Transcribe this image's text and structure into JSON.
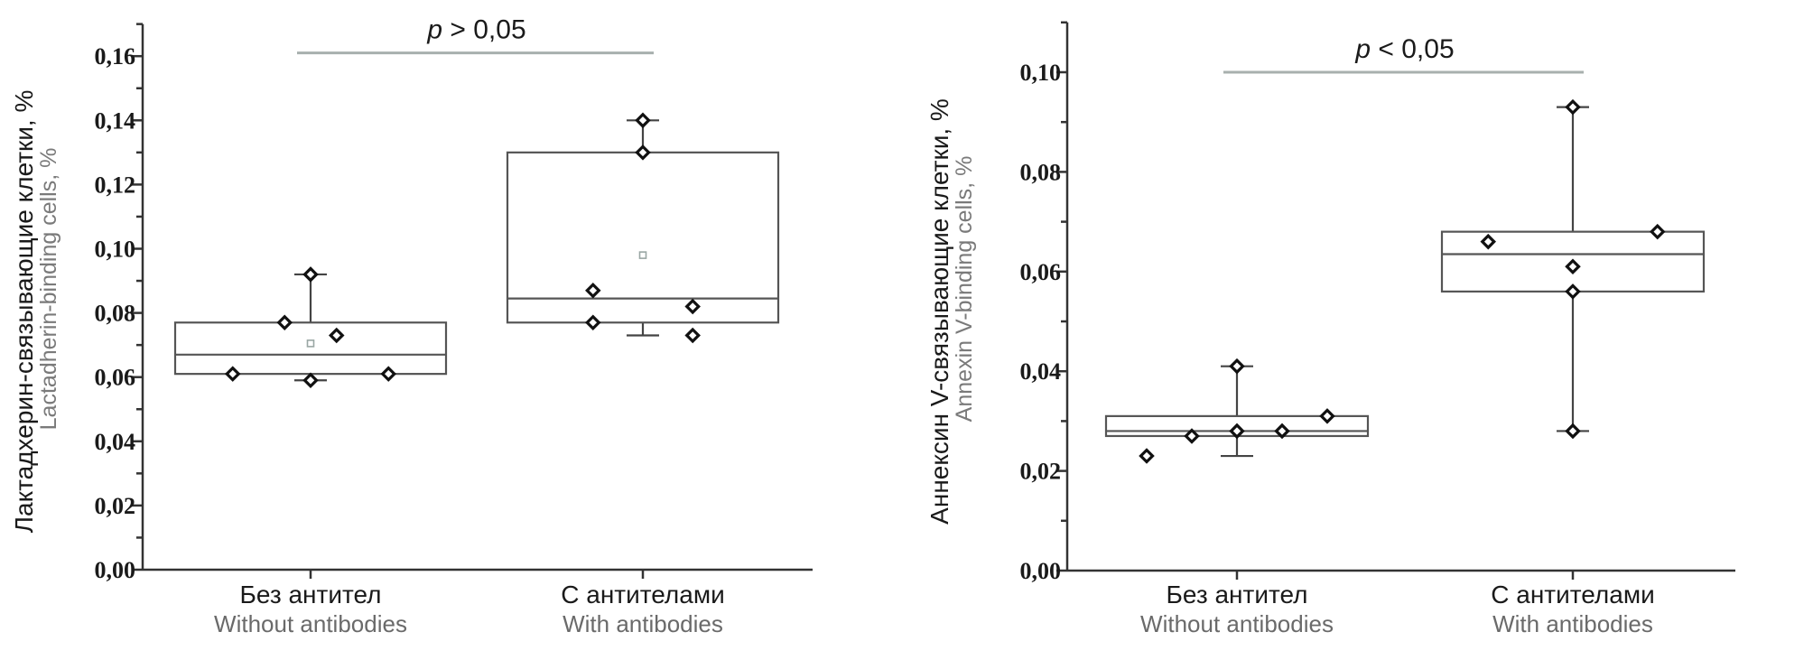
{
  "chart_data": [
    {
      "type": "box",
      "ylabel": "Лактадхерин-связывающие клетки, %",
      "ylabel_en": "Lactadherin-binding cells, %",
      "ylim": [
        0,
        0.17
      ],
      "yticks": [
        0.0,
        0.02,
        0.04,
        0.06,
        0.08,
        0.1,
        0.12,
        0.14,
        0.16
      ],
      "ytick_labels": [
        "0,00",
        "0,02",
        "0,04",
        "0,06",
        "0,08",
        "0,10",
        "0,12",
        "0,14",
        "0,16"
      ],
      "minor_step": 0.01,
      "significance": {
        "p": "p",
        "text": " > 0,05",
        "from": 0,
        "to": 1,
        "y": 0.161
      },
      "categories": [
        {
          "label": "Без антител",
          "label_en": "Without antibodies",
          "q1": 0.061,
          "median": 0.067,
          "q3": 0.077,
          "whisker_low": 0.059,
          "whisker_high": 0.092,
          "mean": 0.0705,
          "points": [
            {
              "dx": -0.75,
              "y": 0.061
            },
            {
              "dx": -0.25,
              "y": 0.077
            },
            {
              "dx": 0.0,
              "y": 0.059
            },
            {
              "dx": 0.0,
              "y": 0.092
            },
            {
              "dx": 0.25,
              "y": 0.073
            },
            {
              "dx": 0.75,
              "y": 0.061
            }
          ]
        },
        {
          "label": "С антителами",
          "label_en": "With antibodies",
          "q1": 0.077,
          "median": 0.0845,
          "q3": 0.13,
          "whisker_low": 0.073,
          "whisker_high": 0.14,
          "mean": 0.098,
          "points": [
            {
              "dx": -0.48,
              "y": 0.087
            },
            {
              "dx": -0.48,
              "y": 0.077
            },
            {
              "dx": 0.0,
              "y": 0.14
            },
            {
              "dx": 0.0,
              "y": 0.13
            },
            {
              "dx": 0.48,
              "y": 0.082
            },
            {
              "dx": 0.48,
              "y": 0.073
            }
          ]
        }
      ]
    },
    {
      "type": "box",
      "ylabel": "Аннексин V-связывающие клетки, %",
      "ylabel_en": "Annexin V-binding cells, %",
      "ylim": [
        0,
        0.11
      ],
      "yticks": [
        0.0,
        0.02,
        0.04,
        0.06,
        0.08,
        0.1
      ],
      "ytick_labels": [
        "0,00",
        "0,02",
        "0,04",
        "0,06",
        "0,08",
        "0,10"
      ],
      "minor_step": 0.01,
      "significance": {
        "p": "p",
        "text": " < 0,05",
        "from": 0,
        "to": 1,
        "y": 0.1
      },
      "categories": [
        {
          "label": "Без антител",
          "label_en": "Without antibodies",
          "q1": 0.027,
          "median": 0.028,
          "q3": 0.031,
          "whisker_low": 0.023,
          "whisker_high": 0.041,
          "mean": null,
          "points": [
            {
              "dx": -0.8,
              "y": 0.023
            },
            {
              "dx": -0.4,
              "y": 0.027
            },
            {
              "dx": 0.0,
              "y": 0.041
            },
            {
              "dx": 0.0,
              "y": 0.028
            },
            {
              "dx": 0.4,
              "y": 0.028
            },
            {
              "dx": 0.8,
              "y": 0.031
            }
          ]
        },
        {
          "label": "С антителами",
          "label_en": "With antibodies",
          "q1": 0.056,
          "median": 0.0635,
          "q3": 0.068,
          "whisker_low": 0.028,
          "whisker_high": 0.093,
          "mean": null,
          "points": [
            {
              "dx": -0.75,
              "y": 0.066
            },
            {
              "dx": 0.0,
              "y": 0.093
            },
            {
              "dx": 0.0,
              "y": 0.061
            },
            {
              "dx": 0.0,
              "y": 0.056
            },
            {
              "dx": 0.0,
              "y": 0.028
            },
            {
              "dx": 0.75,
              "y": 0.068
            }
          ]
        }
      ]
    }
  ]
}
